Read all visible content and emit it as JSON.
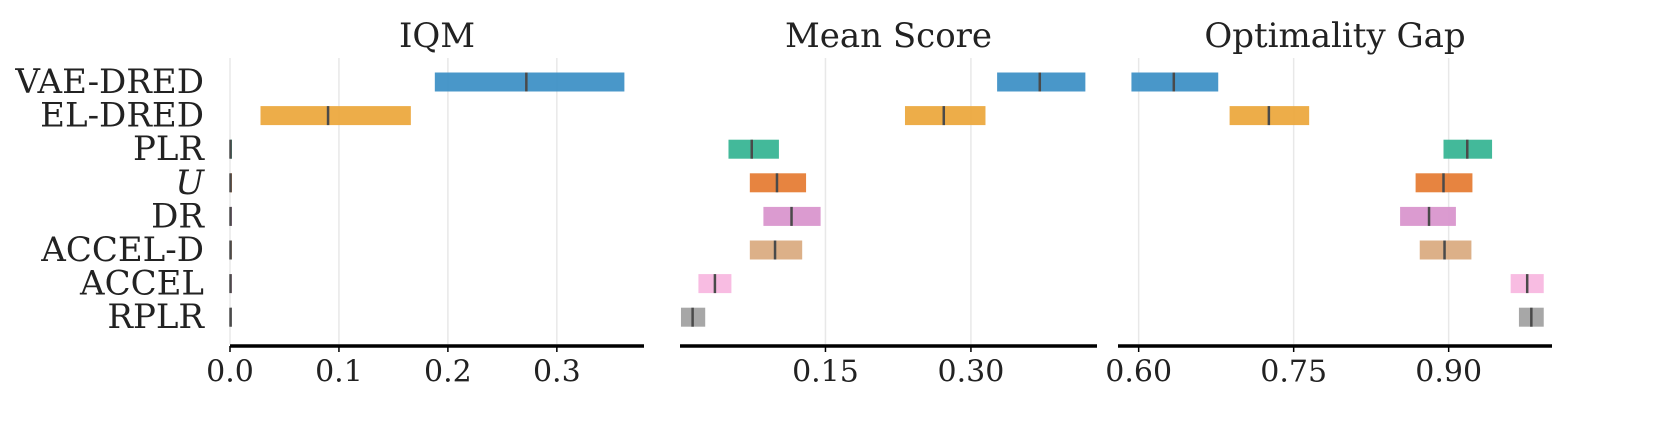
{
  "colors": {
    "grid": "#e8e8e8",
    "axis": "#000000",
    "median": "#4a4a4a",
    "algorithms": {
      "VAE-DRED": "#3a8ec4",
      "EL-DRED": "#eba63a",
      "PLR": "#33b391",
      "U": "#e57a30",
      "DR": "#d892cc",
      "ACCEL-D": "#d9a97e",
      "ACCEL": "#f7b6e0",
      "RPLR": "#a0a0a0"
    }
  },
  "chart_data": [
    {
      "type": "interval",
      "title": "IQM",
      "xlim": [
        0.0,
        0.38
      ],
      "xticks": [
        0.0,
        0.1,
        0.2,
        0.3
      ],
      "xtick_labels": [
        "0.0",
        "0.1",
        "0.2",
        "0.3"
      ],
      "grid": true,
      "categories": [
        "VAE-DRED",
        "EL-DRED",
        "PLR",
        "U",
        "DR",
        "ACCEL-D",
        "ACCEL",
        "RPLR"
      ],
      "low": [
        0.188,
        0.028,
        0.0,
        0.0,
        0.0,
        0.0,
        0.0,
        0.0
      ],
      "high": [
        0.362,
        0.166,
        0.001,
        0.001,
        0.001,
        0.001,
        0.001,
        0.001
      ],
      "median": [
        0.272,
        0.09,
        0.0005,
        0.0005,
        0.0005,
        0.0005,
        0.0005,
        0.0005
      ]
    },
    {
      "type": "interval",
      "title": "Mean Score",
      "xlim": [
        0.0,
        0.43
      ],
      "xticks": [
        0.15,
        0.3
      ],
      "xtick_labels": [
        "0.15",
        "0.30"
      ],
      "grid": true,
      "categories": [
        "VAE-DRED",
        "EL-DRED",
        "PLR",
        "U",
        "DR",
        "ACCEL-D",
        "ACCEL",
        "RPLR"
      ],
      "low": [
        0.327,
        0.232,
        0.05,
        0.072,
        0.086,
        0.072,
        0.019,
        0.001
      ],
      "high": [
        0.418,
        0.315,
        0.102,
        0.13,
        0.145,
        0.126,
        0.053,
        0.026
      ],
      "median": [
        0.371,
        0.272,
        0.074,
        0.1,
        0.115,
        0.098,
        0.036,
        0.013
      ]
    },
    {
      "type": "interval",
      "title": "Optimality Gap",
      "xlim": [
        0.58,
        1.0
      ],
      "xticks": [
        0.6,
        0.75,
        0.9
      ],
      "xtick_labels": [
        "0.60",
        "0.75",
        "0.90"
      ],
      "grid": true,
      "categories": [
        "VAE-DRED",
        "EL-DRED",
        "PLR",
        "U",
        "DR",
        "ACCEL-D",
        "ACCEL",
        "RPLR"
      ],
      "low": [
        0.593,
        0.688,
        0.895,
        0.868,
        0.853,
        0.872,
        0.96,
        0.968
      ],
      "high": [
        0.677,
        0.765,
        0.942,
        0.923,
        0.907,
        0.922,
        0.992,
        0.992
      ],
      "median": [
        0.634,
        0.726,
        0.918,
        0.895,
        0.881,
        0.896,
        0.976,
        0.98
      ]
    }
  ],
  "y_labels": [
    "VAE-DRED",
    "EL-DRED",
    "PLR",
    "U",
    "DR",
    "ACCEL-D",
    "ACCEL",
    "RPLR"
  ]
}
